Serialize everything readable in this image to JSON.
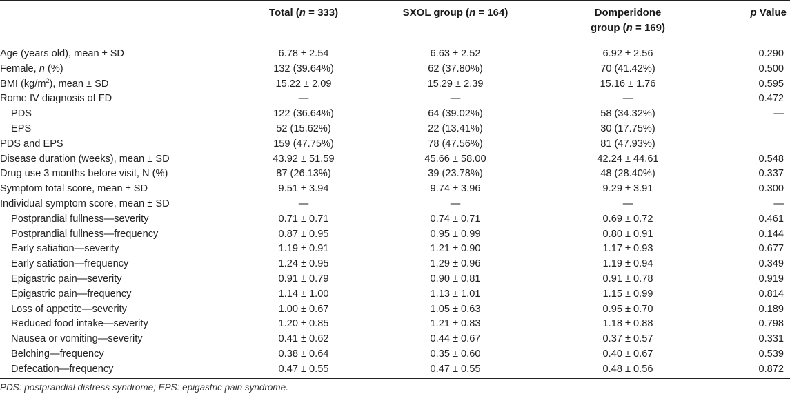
{
  "header": {
    "total": "Total (",
    "total_n": "n",
    "total_rest": " = 333)",
    "sxol_a": "SXO",
    "sxol_b": "L",
    "sxol_c": " group (",
    "sxol_n": "n",
    "sxol_rest": " = 164)",
    "dom_line1": "Domperidone",
    "dom_line2a": "group (",
    "dom_n": "n",
    "dom_line2b": " = 169)",
    "p_italic": "p",
    "p_rest": " Value"
  },
  "rows": [
    {
      "label": "Age (years old), mean ± SD",
      "total": "6.78 ± 2.54",
      "sxol": "6.63 ± 2.52",
      "dom": "6.92 ± 2.56",
      "p": "0.290"
    },
    {
      "label_a": "Female, ",
      "label_n": "n",
      "label_b": " (%)",
      "total": "132 (39.64%)",
      "sxol": "62 (37.80%)",
      "dom": "70 (41.42%)",
      "p": "0.500"
    },
    {
      "label_a": "BMI (kg/m",
      "label_sup": "2",
      "label_b": "), mean ± SD",
      "total": "15.22 ± 2.09",
      "sxol": "15.29 ± 2.39",
      "dom": "15.16 ± 1.76",
      "p": "0.595"
    },
    {
      "label": "Rome IV diagnosis of FD",
      "total": "—",
      "sxol": "—",
      "dom": "—",
      "p": "0.472"
    },
    {
      "label": "PDS",
      "total": "122 (36.64%)",
      "sxol": "64 (39.02%)",
      "dom": "58 (34.32%)",
      "p": "—"
    },
    {
      "label": "EPS",
      "total": "52 (15.62%)",
      "sxol": "22 (13.41%)",
      "dom": "30 (17.75%)",
      "p": ""
    },
    {
      "label": "PDS and EPS",
      "total": "159 (47.75%)",
      "sxol": "78 (47.56%)",
      "dom": "81 (47.93%)",
      "p": ""
    },
    {
      "label": "Disease duration (weeks), mean ± SD",
      "total": "43.92 ± 51.59",
      "sxol": "45.66 ± 58.00",
      "dom": "42.24 ± 44.61",
      "p": "0.548"
    },
    {
      "label": "Drug use 3 months before visit, N (%)",
      "total": "87 (26.13%)",
      "sxol": "39 (23.78%)",
      "dom": "48 (28.40%)",
      "p": "0.337"
    },
    {
      "label": "Symptom total score, mean ± SD",
      "total": "9.51 ± 3.94",
      "sxol": "9.74 ± 3.96",
      "dom": "9.29 ± 3.91",
      "p": "0.300"
    },
    {
      "label": "Individual symptom score, mean ± SD",
      "total": "—",
      "sxol": "—",
      "dom": "—",
      "p": "—"
    },
    {
      "label": "Postprandial fullness—severity",
      "total": "0.71 ± 0.71",
      "sxol": "0.74 ± 0.71",
      "dom": "0.69 ± 0.72",
      "p": "0.461"
    },
    {
      "label": "Postprandial fullness—frequency",
      "total": "0.87 ± 0.95",
      "sxol": "0.95 ± 0.99",
      "dom": "0.80 ± 0.91",
      "p": "0.144"
    },
    {
      "label": "Early satiation—severity",
      "total": "1.19 ± 0.91",
      "sxol": "1.21 ± 0.90",
      "dom": "1.17 ± 0.93",
      "p": "0.677"
    },
    {
      "label": "Early satiation—frequency",
      "total": "1.24 ± 0.95",
      "sxol": "1.29 ± 0.96",
      "dom": "1.19 ± 0.94",
      "p": "0.349"
    },
    {
      "label": "Epigastric pain—severity",
      "total": "0.91 ± 0.79",
      "sxol": "0.90 ± 0.81",
      "dom": "0.91 ± 0.78",
      "p": "0.919"
    },
    {
      "label": "Epigastric pain—frequency",
      "total": "1.14 ± 1.00",
      "sxol": "1.13 ± 1.01",
      "dom": "1.15 ± 0.99",
      "p": "0.814"
    },
    {
      "label": "Loss of appetite—severity",
      "total": "1.00 ± 0.67",
      "sxol": "1.05 ± 0.63",
      "dom": "0.95 ± 0.70",
      "p": "0.189"
    },
    {
      "label": "Reduced food intake—severity",
      "total": "1.20 ± 0.85",
      "sxol": "1.21 ± 0.83",
      "dom": "1.18 ± 0.88",
      "p": "0.798"
    },
    {
      "label": "Nausea or vomiting—severity",
      "total": "0.41 ± 0.62",
      "sxol": "0.44 ± 0.67",
      "dom": "0.37 ± 0.57",
      "p": "0.331"
    },
    {
      "label": "Belching—frequency",
      "total": "0.38 ± 0.64",
      "sxol": "0.35 ± 0.60",
      "dom": "0.40 ± 0.67",
      "p": "0.539"
    },
    {
      "label": "Defecation—frequency",
      "total": "0.47 ± 0.55",
      "sxol": "0.47 ± 0.55",
      "dom": "0.48 ± 0.56",
      "p": "0.872"
    }
  ],
  "footnote": "PDS: postprandial distress syndrome; EPS: epigastric pain syndrome."
}
